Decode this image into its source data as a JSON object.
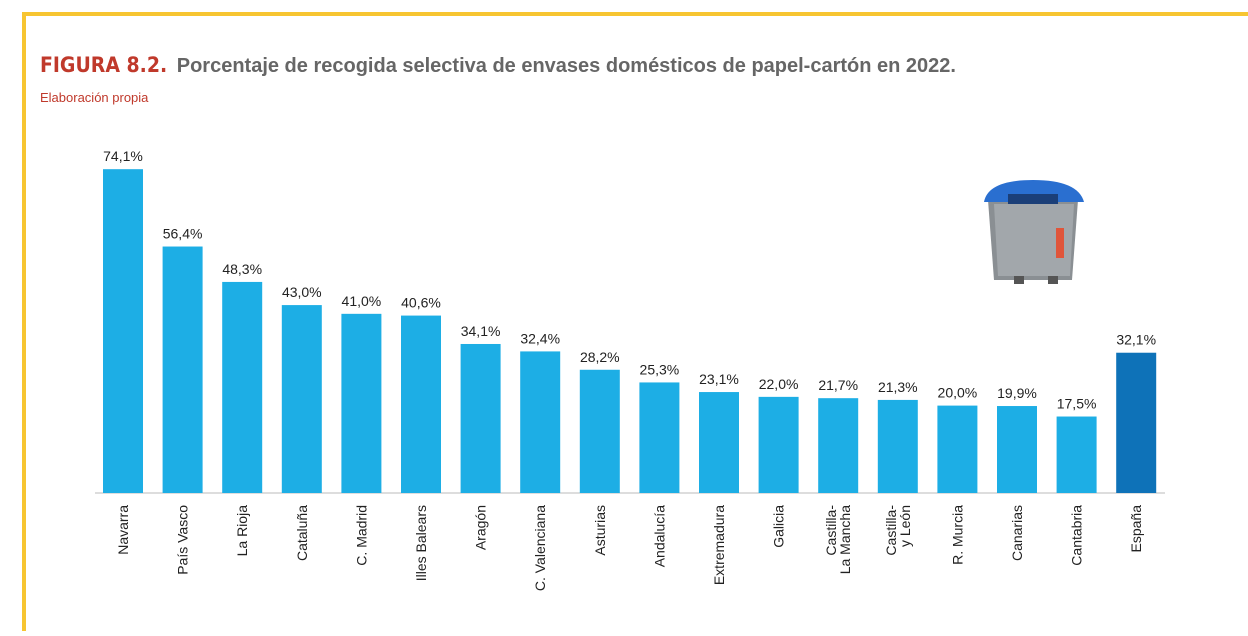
{
  "chart_data": {
    "type": "bar",
    "figure_label": "FIGURA 8.2.",
    "title": "Porcentaje de recogida selectiva de envases domésticos de papel-cartón en 2022.",
    "subtitle": "Elaboración propia",
    "categories": [
      "Navarra",
      "País Vasco",
      "La Rioja",
      "Cataluña",
      "C. Madrid",
      "Illes Balears",
      "Aragón",
      "C. Valenciana",
      "Asturias",
      "Andalucía",
      "Extremadura",
      "Galicia",
      "Castilla-\nLa Mancha",
      "Castilla-\ny León",
      "R. Murcia",
      "Canarias",
      "Cantabria",
      "España"
    ],
    "values": [
      74.1,
      56.4,
      48.3,
      43.0,
      41.0,
      40.6,
      34.1,
      32.4,
      28.2,
      25.3,
      23.1,
      22.0,
      21.7,
      21.3,
      20.0,
      19.9,
      17.5,
      32.1
    ],
    "value_labels": [
      "74,1%",
      "56,4%",
      "48,3%",
      "43,0%",
      "41,0%",
      "40,6%",
      "34,1%",
      "32,4%",
      "28,2%",
      "25,3%",
      "23,1%",
      "22,0%",
      "21,7%",
      "21,3%",
      "20,0%",
      "19,9%",
      "17,5%",
      "32,1%"
    ],
    "colors": [
      "#1daee5",
      "#1daee5",
      "#1daee5",
      "#1daee5",
      "#1daee5",
      "#1daee5",
      "#1daee5",
      "#1daee5",
      "#1daee5",
      "#1daee5",
      "#1daee5",
      "#1daee5",
      "#1daee5",
      "#1daee5",
      "#1daee5",
      "#1daee5",
      "#1daee5",
      "#0e72b8"
    ]
  }
}
